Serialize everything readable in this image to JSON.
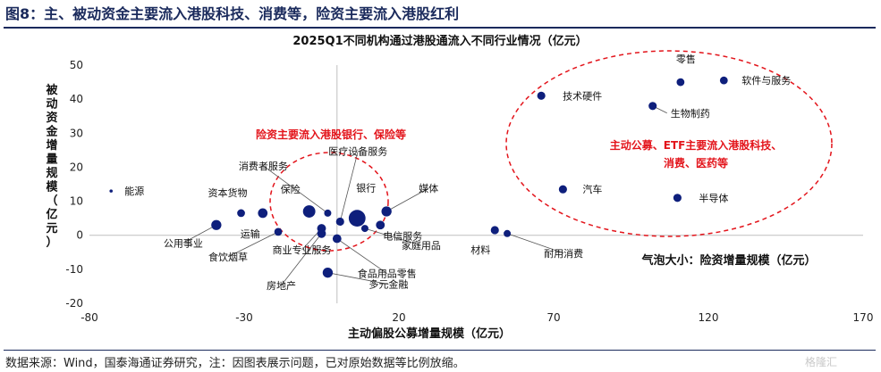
{
  "figure_title": "图8：主、被动资金主要流入港股科技、消费等，险资主要流入港股红利",
  "source_note": "数据来源：Wind，国泰海通证券研究，注：因图表展示问题，已对原始数据等比例放缩。",
  "watermark": "格隆汇",
  "chart_data": {
    "type": "scatter",
    "title": "2025Q1不同机构通过港股通流入不同行业情况（亿元）",
    "xlabel": "主动偏股公募增量规模（亿元）",
    "ylabel": "被动资金增量规模（亿元）",
    "xlim": [
      -80,
      170
    ],
    "ylim": [
      -20,
      50
    ],
    "xticks": [
      -80,
      -30,
      20,
      70,
      120,
      170
    ],
    "yticks": [
      -20,
      -10,
      0,
      10,
      20,
      30,
      40,
      50
    ],
    "grid": false,
    "size_note": "气泡大小：险资增量规模（亿元）",
    "color": "#0e1f7c",
    "points": [
      {
        "name": "能源",
        "x": -73,
        "y": 13,
        "size": 0.2
      },
      {
        "name": "资本货物",
        "x": -31,
        "y": 6.5,
        "size": 1.2
      },
      {
        "name": "运输",
        "x": -24,
        "y": 6.5,
        "size": 1.8
      },
      {
        "name": "公用事业",
        "x": -39,
        "y": 3,
        "size": 2.0
      },
      {
        "name": "食饮烟草",
        "x": -19,
        "y": 1,
        "size": 1.2
      },
      {
        "name": "保险",
        "x": -9,
        "y": 7,
        "size": 3.0
      },
      {
        "name": "消费者服务",
        "x": -3,
        "y": 6.5,
        "size": 1.0
      },
      {
        "name": "商业专业服务",
        "x": -5,
        "y": 2,
        "size": 1.5
      },
      {
        "name": "房地产",
        "x": -5,
        "y": 0.5,
        "size": 1.5
      },
      {
        "name": "医疗设备服务",
        "x": 1,
        "y": 4,
        "size": 1.3
      },
      {
        "name": "食品用品零售",
        "x": 0,
        "y": -1,
        "size": 1.5
      },
      {
        "name": "银行",
        "x": 6.5,
        "y": 5,
        "size": 5.5
      },
      {
        "name": "媒体",
        "x": 16,
        "y": 7,
        "size": 2.0
      },
      {
        "name": "电信服务",
        "x": 14,
        "y": 3,
        "size": 1.5
      },
      {
        "name": "家庭用品",
        "x": 9,
        "y": 2,
        "size": 1.0
      },
      {
        "name": "多元金融",
        "x": -3,
        "y": -11,
        "size": 2.0
      },
      {
        "name": "材料",
        "x": 51,
        "y": 1.5,
        "size": 1.3
      },
      {
        "name": "耐用消费",
        "x": 55,
        "y": 0.5,
        "size": 1.0
      },
      {
        "name": "技术硬件",
        "x": 66,
        "y": 41,
        "size": 1.3
      },
      {
        "name": "零售",
        "x": 111,
        "y": 45,
        "size": 1.2
      },
      {
        "name": "软件与服务",
        "x": 125,
        "y": 45.5,
        "size": 1.2
      },
      {
        "name": "生物制药",
        "x": 102,
        "y": 38,
        "size": 1.3
      },
      {
        "name": "汽车",
        "x": 73,
        "y": 13.5,
        "size": 1.3
      },
      {
        "name": "半导体",
        "x": 110,
        "y": 11,
        "size": 1.3
      }
    ],
    "annotations": [
      {
        "text": "险资主要流入港股银行、保险等"
      },
      {
        "text": "主动公募、ETF主要流入港股科技、"
      },
      {
        "text": "消费、医药等"
      }
    ]
  }
}
